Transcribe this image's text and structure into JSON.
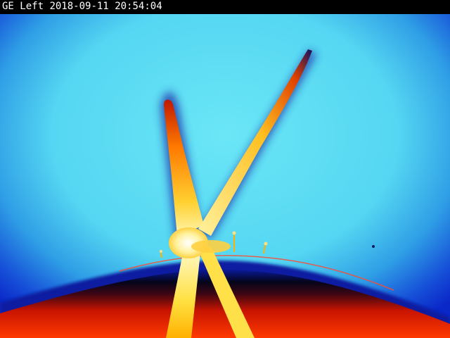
{
  "camera": {
    "name": "GE Left",
    "date": "2018-09-11",
    "time": "20:54:04"
  },
  "scene": {
    "subject": "thermal-camera-view-of-wind-turbine-nacelle-and-blades",
    "palette": {
      "sky_center": "#5fe4f5",
      "sky_mid": "#3fb6ec",
      "sky_edge": "#0d2fd0",
      "deep_blue": "#001a8c",
      "black_band": "#05051a",
      "hot_red": "#e61e00",
      "hot_orange": "#ff8a00",
      "hot_yellow": "#ffe640",
      "hot_white": "#fffbd0"
    }
  }
}
